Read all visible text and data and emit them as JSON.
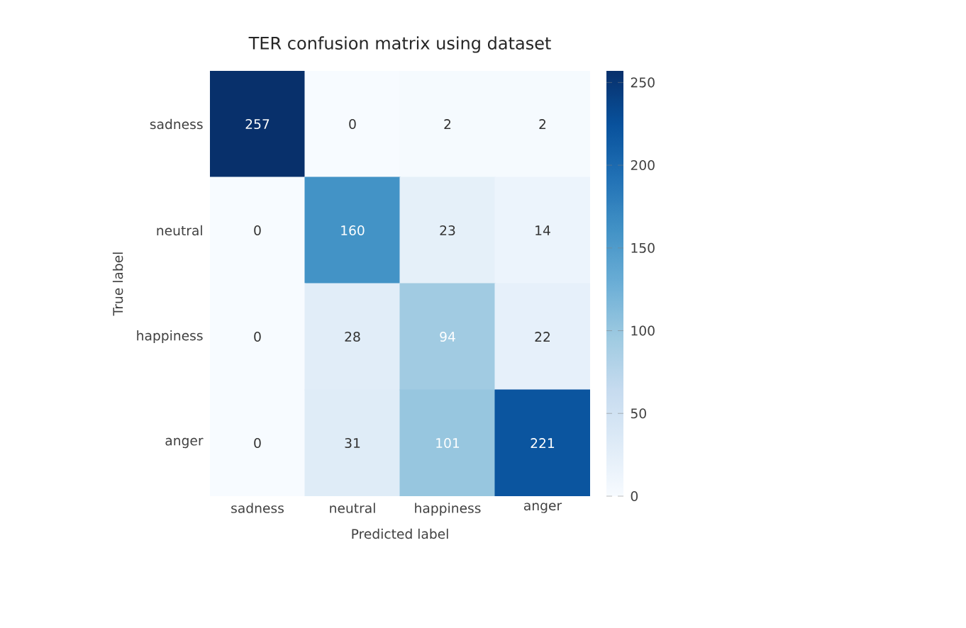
{
  "chart_data": {
    "type": "heatmap",
    "title": "TER confusion matrix using dataset",
    "xlabel": "Predicted label",
    "ylabel": "True label",
    "categories": [
      "sadness",
      "neutral",
      "happiness",
      "anger"
    ],
    "y_categories": [
      "sadness",
      "neutral",
      "happiness",
      "anger"
    ],
    "cells": [
      [
        257,
        0,
        2,
        2
      ],
      [
        0,
        160,
        23,
        14
      ],
      [
        0,
        28,
        94,
        22
      ],
      [
        0,
        31,
        101,
        221
      ]
    ],
    "data_labels": true,
    "clim": [
      0,
      257
    ],
    "cticks": [
      0,
      50,
      100,
      150,
      200,
      250
    ]
  }
}
